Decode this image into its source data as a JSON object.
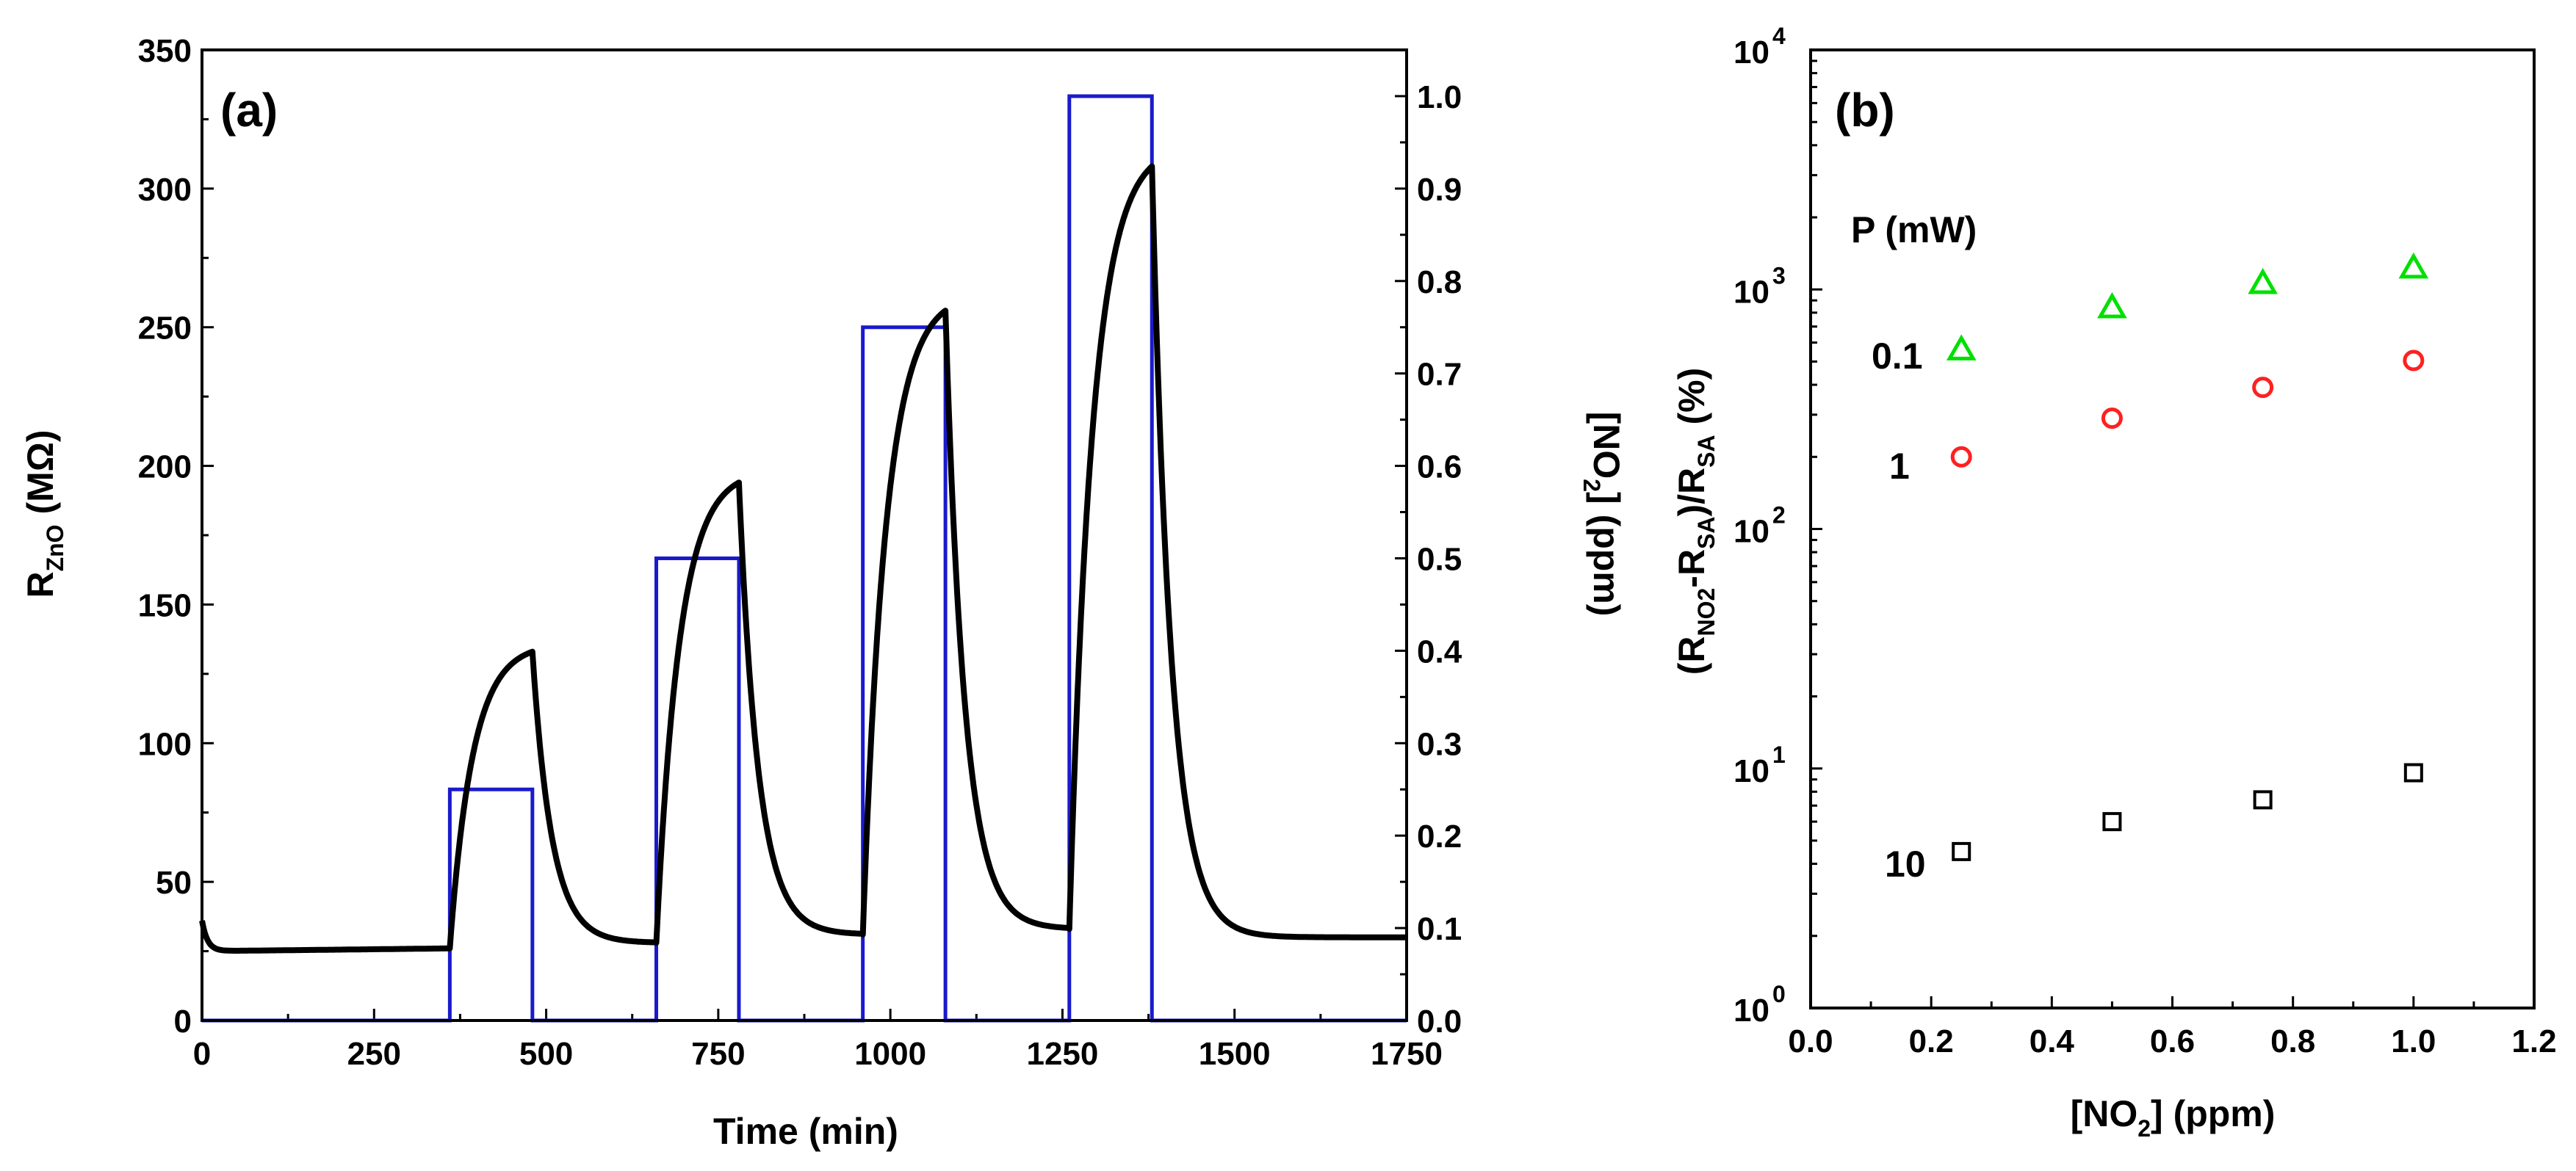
{
  "chart_data": [
    {
      "panel": "(a)",
      "type": "line",
      "xlabel": "Time (min)",
      "ylabel": {
        "base": "R",
        "sub": "ZnO",
        "tail": " (MΩ)"
      },
      "y2label": {
        "head": "[NO",
        "sub": "2",
        "tail": "] (ppm)"
      },
      "xlim": [
        0,
        1750
      ],
      "ylim": [
        0,
        350
      ],
      "y2lim": [
        0,
        1.05
      ],
      "xticks": [
        0,
        250,
        500,
        750,
        1000,
        1250,
        1500,
        1750
      ],
      "xtick_labels": [
        "0",
        "250",
        "500",
        "750",
        "1000",
        "1250",
        "1500",
        "1750"
      ],
      "yticks": [
        0,
        50,
        100,
        150,
        200,
        250,
        300,
        350
      ],
      "ytick_labels": [
        "0",
        "50",
        "100",
        "150",
        "200",
        "250",
        "300",
        "350"
      ],
      "y2ticks": [
        0,
        0.1,
        0.2,
        0.3,
        0.4,
        0.5,
        0.6,
        0.7,
        0.8,
        0.9,
        1.0
      ],
      "y2tick_labels": [
        "0.0",
        "0.1",
        "0.2",
        "0.3",
        "0.4",
        "0.5",
        "0.6",
        "0.7",
        "0.8",
        "0.9",
        "1.0"
      ],
      "series": [
        {
          "name": "R_ZnO",
          "color": "#000000",
          "axis": "left",
          "baseline_start": 36,
          "baseline": 25,
          "pulses": [
            {
              "start": 360,
              "end": 480,
              "start_val": 26,
              "peak": 133,
              "recover_to": 28
            },
            {
              "start": 660,
              "end": 780,
              "start_val": 28,
              "peak": 194,
              "recover_to": 31
            },
            {
              "start": 960,
              "end": 1080,
              "start_val": 31,
              "peak": 256,
              "recover_to": 33
            },
            {
              "start": 1260,
              "end": 1380,
              "start_val": 33,
              "peak": 308,
              "recover_to": 30
            }
          ],
          "end_x": 1750,
          "end_val": 30
        },
        {
          "name": "[NO2] step profile",
          "color": "#1a1acc",
          "axis": "right",
          "steps": [
            {
              "start": 360,
              "end": 480,
              "ppm": 0.25
            },
            {
              "start": 660,
              "end": 780,
              "ppm": 0.5
            },
            {
              "start": 960,
              "end": 1080,
              "ppm": 0.75
            },
            {
              "start": 1260,
              "end": 1380,
              "ppm": 1.0
            }
          ]
        }
      ]
    },
    {
      "panel": "(b)",
      "type": "scatter",
      "xlabel": {
        "head": "[NO",
        "sub": "2",
        "tail": "] (ppm)"
      },
      "ylabel": {
        "p1": "(R",
        "s1": "NO2",
        "p2": "-R",
        "s2": "SA",
        "p3": ")/R",
        "s3": "SA",
        "p4": " (%)"
      },
      "xlim": [
        0,
        1.2
      ],
      "ylim_log10": [
        0,
        4
      ],
      "xticks": [
        0,
        0.2,
        0.4,
        0.6,
        0.8,
        1.0,
        1.2
      ],
      "xtick_labels": [
        "0.0",
        "0.2",
        "0.4",
        "0.6",
        "0.8",
        "1.0",
        "1.2"
      ],
      "yticks_exp": [
        0,
        1,
        2,
        3,
        4
      ],
      "ytick_base": "10",
      "ytick_exps": [
        "0",
        "1",
        "2",
        "3",
        "4"
      ],
      "legend_title": "P (mW)",
      "series": [
        {
          "name": "0.1",
          "marker": "triangle",
          "color": "#00e000",
          "x": [
            0.25,
            0.5,
            0.75,
            1.0
          ],
          "y": [
            560,
            840,
            1060,
            1230
          ]
        },
        {
          "name": "1",
          "marker": "circle",
          "color": "#ff2020",
          "x": [
            0.25,
            0.5,
            0.75,
            1.0
          ],
          "y": [
            200,
            290,
            390,
            505
          ]
        },
        {
          "name": "10",
          "marker": "square",
          "color": "#000000",
          "x": [
            0.25,
            0.5,
            0.75,
            1.0
          ],
          "y": [
            4.5,
            6.0,
            7.4,
            9.6
          ]
        }
      ]
    }
  ]
}
